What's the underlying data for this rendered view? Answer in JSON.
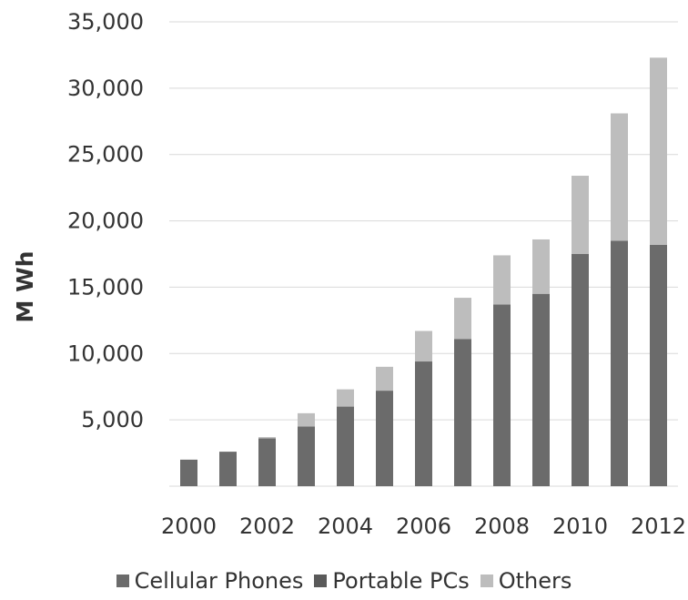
{
  "chart_data": {
    "type": "bar",
    "stacked": true,
    "categories": [
      "2000",
      "2001",
      "2002",
      "2003",
      "2004",
      "2005",
      "2006",
      "2007",
      "2008",
      "2009",
      "2010",
      "2011",
      "2012"
    ],
    "x_tick_labels": [
      "2000",
      "2002",
      "2004",
      "2006",
      "2008",
      "2010",
      "2012"
    ],
    "series": [
      {
        "name": "Cellular Phones",
        "color": "#6b6b6b",
        "values": [
          2000,
          2600,
          3600,
          4500,
          6000,
          7200,
          9400,
          11100,
          13700,
          14500,
          17500,
          18500,
          18200
        ]
      },
      {
        "name": "Portable PCs",
        "color": "#5a5a5a",
        "values": [
          0,
          0,
          0,
          0,
          0,
          0,
          0,
          0,
          0,
          0,
          0,
          0,
          0
        ]
      },
      {
        "name": "Others",
        "color": "#bdbdbd",
        "values": [
          0,
          0,
          100,
          1000,
          1300,
          1800,
          2300,
          3100,
          3700,
          4100,
          5900,
          9600,
          14100
        ]
      }
    ],
    "ylabel": "M Wh",
    "xlabel": "",
    "ylim": [
      0,
      35000
    ],
    "y_ticks": [
      5000,
      10000,
      15000,
      20000,
      25000,
      30000,
      35000
    ],
    "y_tick_labels": [
      "5,000",
      "10,000",
      "15,000",
      "20,000",
      "25,000",
      "30,000",
      "35,000"
    ],
    "grid": true,
    "legend_position": "bottom"
  }
}
